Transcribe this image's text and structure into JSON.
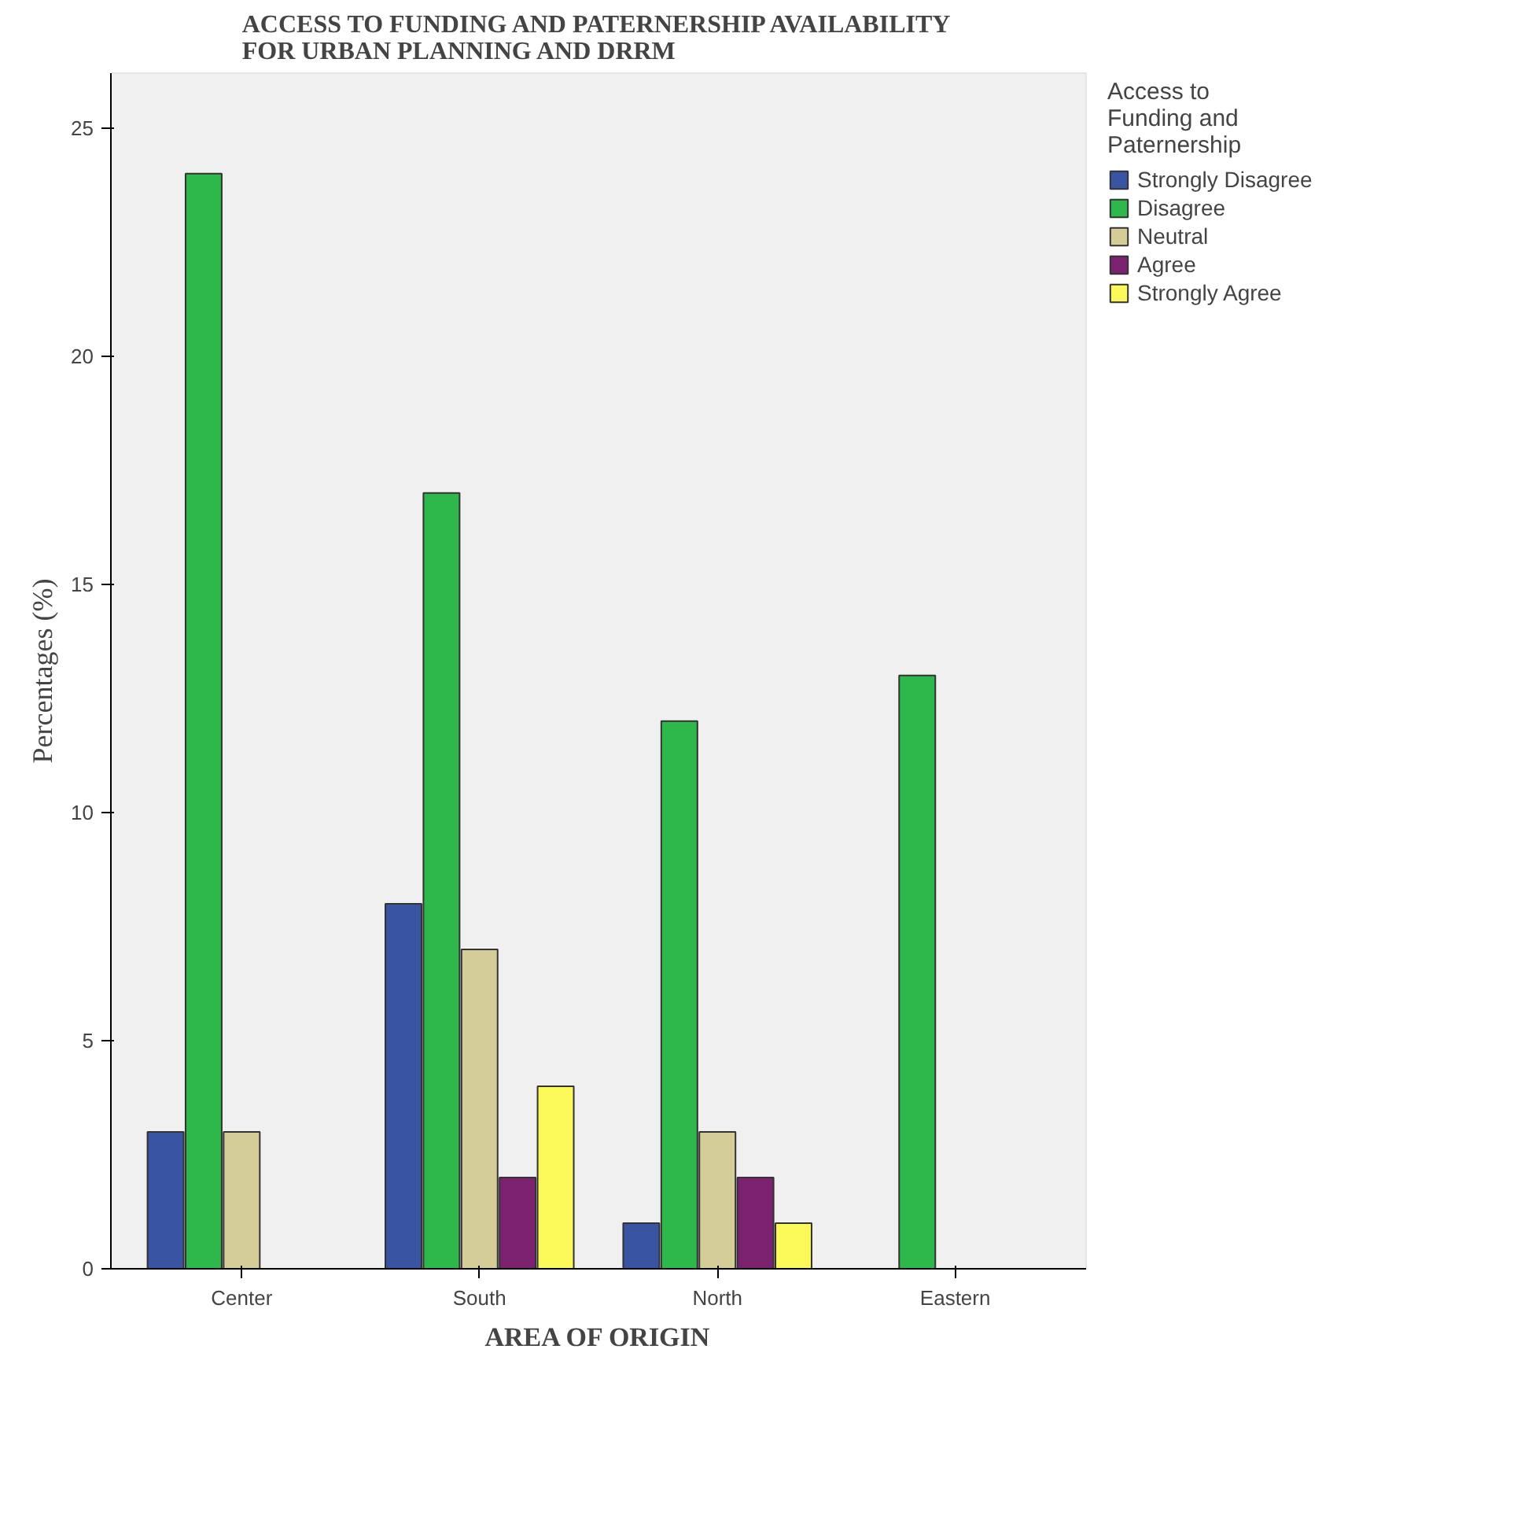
{
  "chart_data": {
    "type": "bar",
    "title": "ACCESS TO FUNDING AND PATERNERSHIP AVAILABILITY FOR URBAN PLANNING AND DRRM",
    "xlabel": "AREA OF ORIGIN",
    "ylabel": "Percentages (%)",
    "legend_title": "Access to Funding and Paternership",
    "categories": [
      "Center",
      "South",
      "North",
      "Eastern"
    ],
    "series": [
      {
        "name": "Strongly Disagree",
        "color": "#3a54a4",
        "values": [
          3,
          8,
          1,
          null
        ]
      },
      {
        "name": "Disagree",
        "color": "#2eb74a",
        "values": [
          24,
          17,
          12,
          13
        ]
      },
      {
        "name": "Neutral",
        "color": "#d4cd97",
        "values": [
          3,
          7,
          3,
          null
        ]
      },
      {
        "name": "Agree",
        "color": "#7c2170",
        "values": [
          null,
          2,
          2,
          null
        ]
      },
      {
        "name": "Strongly Agree",
        "color": "#fbf95a",
        "values": [
          null,
          4,
          1,
          null
        ]
      }
    ],
    "ylim": [
      0,
      26.2
    ],
    "yticks": [
      0,
      5,
      10,
      15,
      20,
      25
    ],
    "grid": false,
    "legend": "right"
  }
}
